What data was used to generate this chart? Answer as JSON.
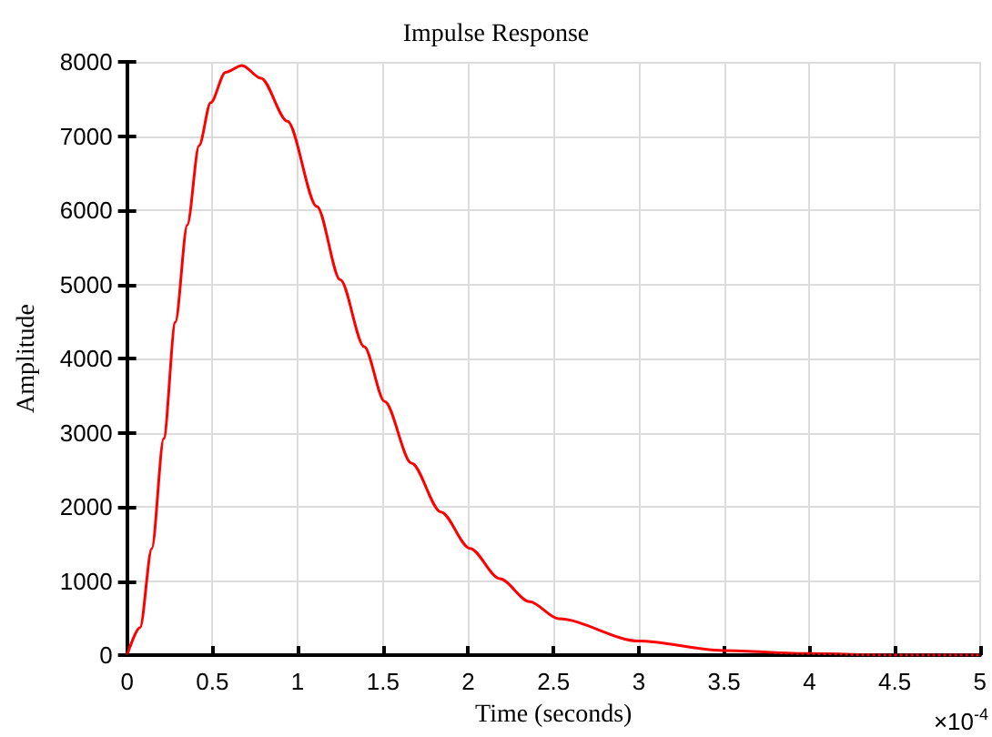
{
  "chart_data": {
    "type": "line",
    "title": "Impulse Response",
    "xlabel": "Time (seconds)",
    "ylabel": "Amplitude",
    "annotations": [
      "×10$^{-4}$"
    ],
    "x": [
      0,
      0.076,
      0.145,
      0.215,
      0.283,
      0.353,
      0.422,
      0.49,
      0.577,
      0.674,
      0.785,
      0.94,
      1.113,
      1.25,
      1.39,
      1.51,
      1.667,
      1.84,
      2.01,
      2.185,
      2.36,
      2.53,
      3.0,
      3.5,
      4.0,
      4.5,
      5.0
    ],
    "series": [
      {
        "color": "#ff0000",
        "values": [
          0,
          370,
          1440,
          2920,
          4490,
          5800,
          6870,
          7450,
          7860,
          7950,
          7780,
          7200,
          6050,
          5060,
          4160,
          3420,
          2590,
          1930,
          1440,
          1030,
          720,
          490,
          190,
          60,
          20,
          0,
          0
        ]
      }
    ],
    "xlim": [
      0,
      5
    ],
    "xticks": [
      0,
      0.5,
      1,
      1.5,
      2,
      2.5,
      3,
      3.5,
      4,
      4.5,
      5
    ],
    "ylim": [
      0,
      8000
    ],
    "yticks": [
      0,
      1000,
      2000,
      3000,
      4000,
      5000,
      6000,
      7000,
      8000
    ],
    "ref_lines": [
      {
        "axis": "y",
        "value": 0,
        "color": "#000000",
        "line_style": "dotted"
      }
    ],
    "grid": true,
    "marker": "none",
    "line_style": "solid"
  }
}
